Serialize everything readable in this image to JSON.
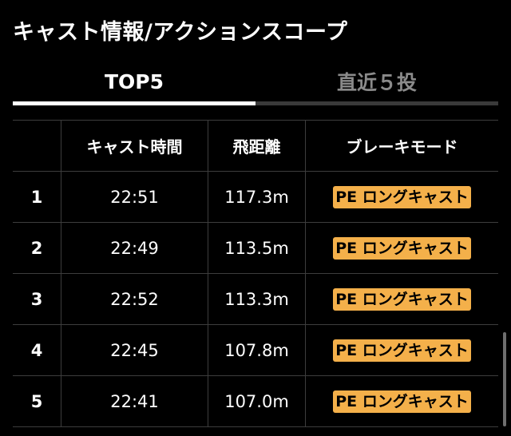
{
  "page": {
    "title": "キャスト情報/アクションスコープ"
  },
  "tabs": [
    {
      "label": "TOP5",
      "active": true
    },
    {
      "label": "直近５投",
      "active": false
    }
  ],
  "table": {
    "headers": [
      "",
      "キャスト時間",
      "飛距離",
      "ブレーキモード"
    ],
    "rows": [
      {
        "rank": "1",
        "time": "22:51",
        "distance": "117.3m",
        "mode": "PE ロングキャスト"
      },
      {
        "rank": "2",
        "time": "22:49",
        "distance": "113.5m",
        "mode": "PE ロングキャスト"
      },
      {
        "rank": "3",
        "time": "22:52",
        "distance": "113.3m",
        "mode": "PE ロングキャスト"
      },
      {
        "rank": "4",
        "time": "22:45",
        "distance": "107.8m",
        "mode": "PE ロングキャスト"
      },
      {
        "rank": "5",
        "time": "22:41",
        "distance": "107.0m",
        "mode": "PE ロングキャスト"
      }
    ]
  },
  "colors": {
    "background": "#000000",
    "badge": "#f4b04a",
    "inactive_tab": "#8a8a8a",
    "grid": "#3d3d3d"
  }
}
